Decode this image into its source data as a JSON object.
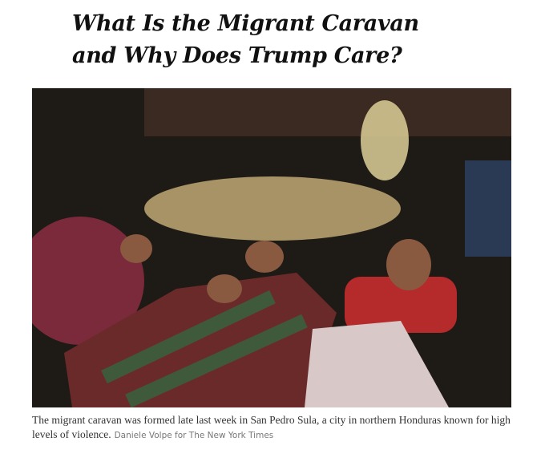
{
  "article": {
    "headline_lines": [
      "What Is the Migrant Caravan",
      "and Why Does Trump Care?"
    ],
    "caption": "The migrant caravan was formed late last week in San Pedro Sula, a city in northern Honduras known for high levels of violence.",
    "credit": "Daniele Volpe for The New York Times"
  }
}
